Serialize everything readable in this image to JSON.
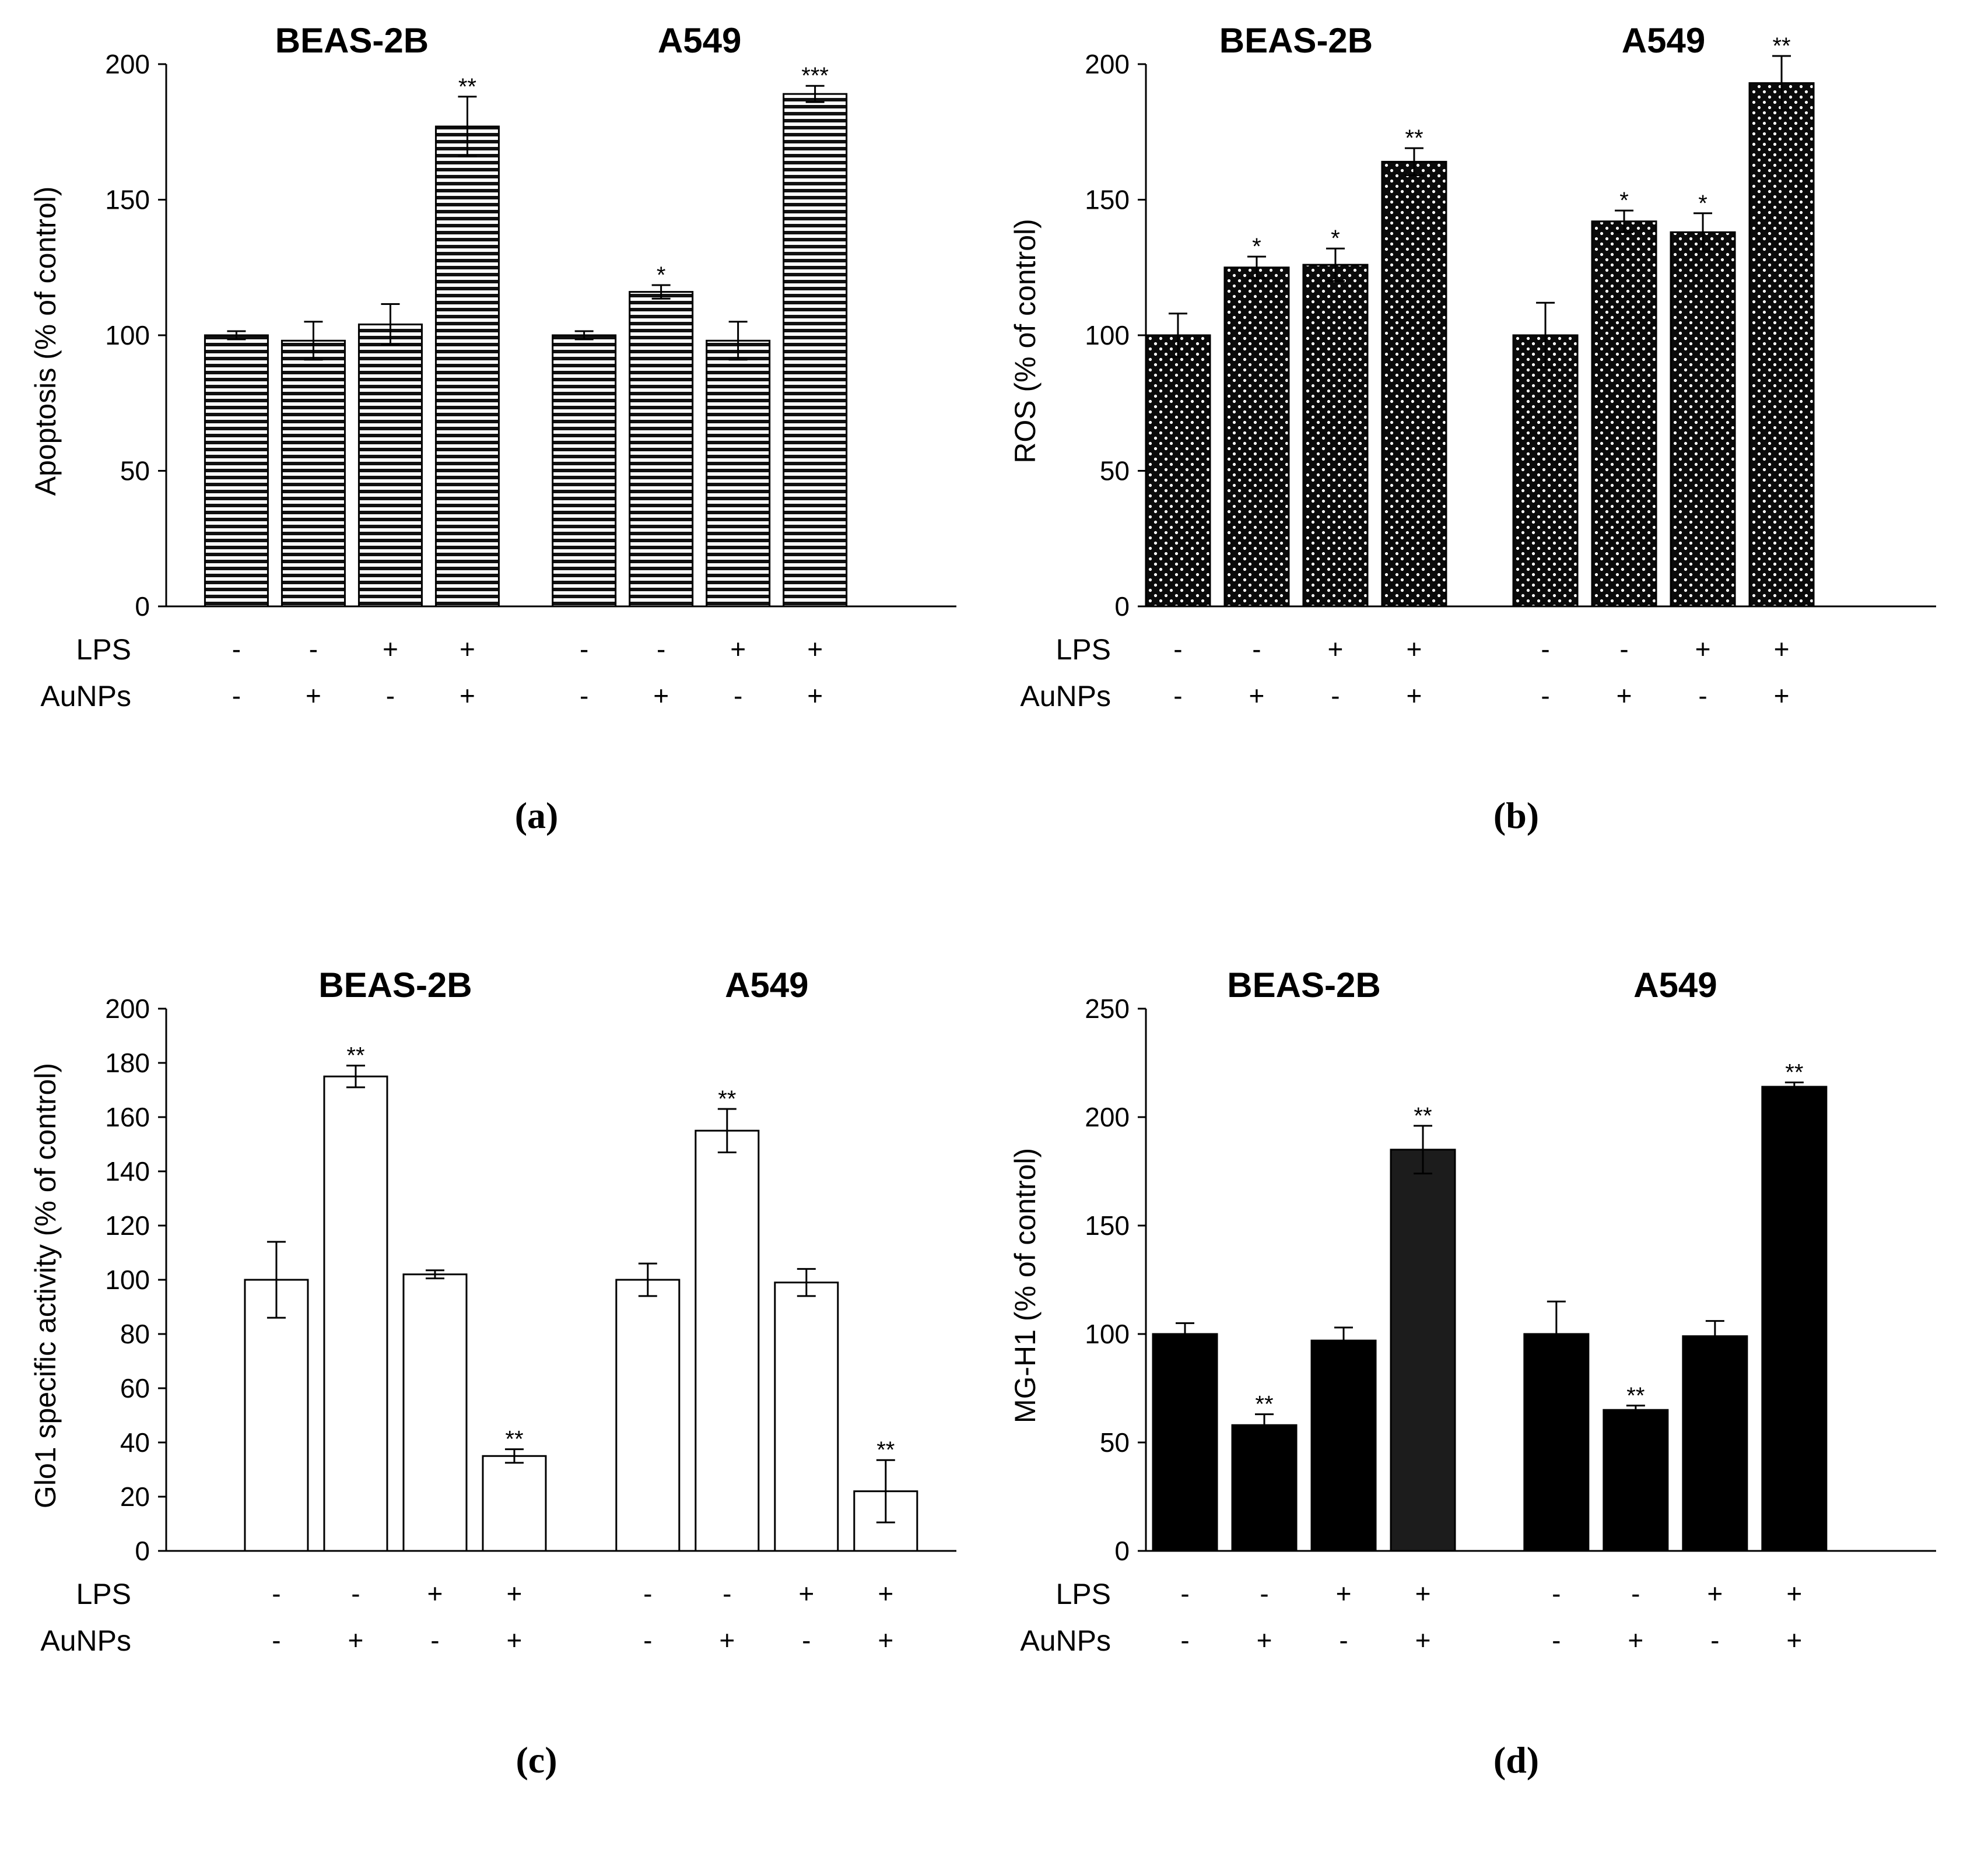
{
  "chart_data": [
    {
      "type": "bar",
      "panel_label": "(a)",
      "title": "",
      "ylabel": "Apoptosis (% of control)",
      "ylim": [
        0,
        200
      ],
      "yticks": [
        "0",
        "50",
        "100",
        "150",
        "200"
      ],
      "groups": [
        "BEAS-2B",
        "A549"
      ],
      "row_labels": [
        "LPS",
        "AuNPs"
      ],
      "conditions": {
        "LPS": [
          "-",
          "-",
          "+",
          "+"
        ],
        "AuNPs": [
          "-",
          "+",
          "-",
          "+"
        ]
      },
      "style": "hstripes",
      "series": [
        {
          "name": "BEAS-2B",
          "values": [
            100,
            98,
            104,
            177
          ],
          "errors": [
            1.5,
            7,
            7.5,
            11
          ],
          "stars": [
            "",
            "",
            "",
            "**"
          ]
        },
        {
          "name": "A549",
          "values": [
            100,
            116,
            98,
            189
          ],
          "errors": [
            1.5,
            2.5,
            7,
            3
          ],
          "stars": [
            "",
            "*",
            "",
            "***"
          ]
        }
      ]
    },
    {
      "type": "bar",
      "panel_label": "(b)",
      "title": "",
      "ylabel": "ROS (% of control)",
      "ylim": [
        0,
        200
      ],
      "yticks": [
        "0",
        "50",
        "100",
        "150",
        "200"
      ],
      "groups": [
        "BEAS-2B",
        "A549"
      ],
      "row_labels": [
        "LPS",
        "AuNPs"
      ],
      "conditions": {
        "LPS": [
          "-",
          "-",
          "+",
          "+"
        ],
        "AuNPs": [
          "-",
          "+",
          "-",
          "+"
        ]
      },
      "style": "dots",
      "series": [
        {
          "name": "BEAS-2B",
          "values": [
            100,
            125,
            126,
            164
          ],
          "errors": [
            8,
            4,
            6,
            5
          ],
          "stars": [
            "",
            "*",
            "*",
            "**"
          ]
        },
        {
          "name": "A549",
          "values": [
            100,
            142,
            138,
            193
          ],
          "errors": [
            12,
            4,
            7,
            10
          ],
          "stars": [
            "",
            "*",
            "*",
            "**"
          ]
        }
      ]
    },
    {
      "type": "bar",
      "panel_label": "(c)",
      "title": "",
      "ylabel": "Glo1 specific activity (% of control)",
      "ylim": [
        0,
        200
      ],
      "yticks": [
        "0",
        "20",
        "40",
        "60",
        "80",
        "100",
        "120",
        "140",
        "160",
        "180",
        "200"
      ],
      "groups": [
        "BEAS-2B",
        "A549"
      ],
      "row_labels": [
        "LPS",
        "AuNPs"
      ],
      "conditions": {
        "LPS": [
          "-",
          "-",
          "+",
          "+"
        ],
        "AuNPs": [
          "-",
          "+",
          "-",
          "+"
        ]
      },
      "style": "white",
      "series": [
        {
          "name": "BEAS-2B",
          "values": [
            100,
            175,
            102,
            35
          ],
          "errors": [
            14,
            4,
            1.5,
            2.5
          ],
          "stars": [
            "",
            "**",
            "",
            "**"
          ]
        },
        {
          "name": "A549",
          "values": [
            100,
            155,
            99,
            22
          ],
          "errors": [
            6,
            8,
            5,
            11.5
          ],
          "stars": [
            "",
            "**",
            "",
            "**"
          ]
        }
      ]
    },
    {
      "type": "bar",
      "panel_label": "(d)",
      "title": "",
      "ylabel": "MG-H1  (% of control)",
      "ylim": [
        0,
        250
      ],
      "yticks": [
        "0",
        "50",
        "100",
        "150",
        "200",
        "250"
      ],
      "groups": [
        "BEAS-2B",
        "A549"
      ],
      "row_labels": [
        "LPS",
        "AuNPs"
      ],
      "conditions": {
        "LPS": [
          "-",
          "-",
          "+",
          "+"
        ],
        "AuNPs": [
          "-",
          "+",
          "-",
          "+"
        ]
      },
      "style": "black",
      "series": [
        {
          "name": "BEAS-2B",
          "values": [
            100,
            58,
            97,
            185
          ],
          "errors": [
            5,
            5,
            6,
            11
          ],
          "stars": [
            "",
            "**",
            "",
            "**"
          ]
        },
        {
          "name": "A549",
          "values": [
            100,
            65,
            99,
            214
          ],
          "errors": [
            15,
            2,
            7,
            2
          ],
          "stars": [
            "",
            "**",
            "",
            "**"
          ]
        }
      ]
    }
  ]
}
